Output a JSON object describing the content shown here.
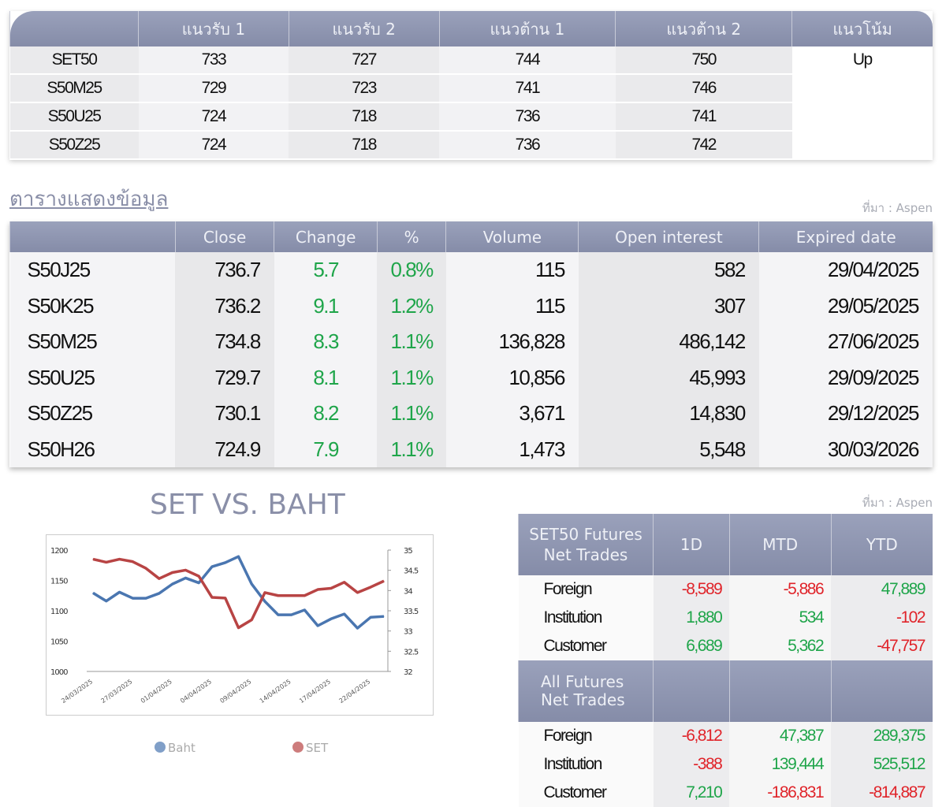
{
  "levels_table": {
    "headers": [
      "",
      "แนวรับ 1",
      "แนวรับ 2",
      "แนวต้าน 1",
      "แนวต้าน 2",
      "แนวโน้ม"
    ],
    "rows": [
      [
        "SET50",
        "733",
        "727",
        "744",
        "750"
      ],
      [
        "S50M25",
        "729",
        "723",
        "741",
        "746"
      ],
      [
        "S50U25",
        "724",
        "718",
        "736",
        "741"
      ],
      [
        "S50Z25",
        "724",
        "718",
        "736",
        "742"
      ]
    ],
    "trend": "Up"
  },
  "data_table": {
    "title": "ตารางแสดงข้อมูล",
    "source": "ที่มา : Aspen",
    "headers": [
      "",
      "Close",
      "Change",
      "%",
      "Volume",
      "Open interest",
      "Expired date"
    ],
    "rows": [
      [
        "S50J25",
        "736.7",
        "5.7",
        "0.8%",
        "115",
        "582",
        "29/04/2025"
      ],
      [
        "S50K25",
        "736.2",
        "9.1",
        "1.2%",
        "115",
        "307",
        "29/05/2025"
      ],
      [
        "S50M25",
        "734.8",
        "8.3",
        "1.1%",
        "136,828",
        "486,142",
        "27/06/2025"
      ],
      [
        "S50U25",
        "729.7",
        "8.1",
        "1.1%",
        "10,856",
        "45,993",
        "29/09/2025"
      ],
      [
        "S50Z25",
        "730.1",
        "8.2",
        "1.1%",
        "3,671",
        "14,830",
        "29/12/2025"
      ],
      [
        "S50H26",
        "724.9",
        "7.9",
        "1.1%",
        "1,473",
        "5,548",
        "30/03/2026"
      ]
    ]
  },
  "chart_data": {
    "type": "line",
    "title": "SET VS. BAHT",
    "x_tick_labels": [
      "24/03/2025",
      "27/03/2025",
      "01/04/2025",
      "04/04/2025",
      "09/04/2025",
      "14/04/2025",
      "17/04/2025",
      "22/04/2025"
    ],
    "y_left": {
      "ylim": [
        1000,
        1200
      ],
      "ticks": [
        "1200",
        "1150",
        "1100",
        "1050",
        "1000"
      ]
    },
    "y_right": {
      "ylim": [
        32,
        35
      ],
      "ticks": [
        "35",
        "34.5",
        "34",
        "33.5",
        "33",
        "32.5",
        "32"
      ]
    },
    "series": [
      {
        "name": "Baht",
        "axis": "right",
        "color": "#4a76b0",
        "values": [
          33.94,
          33.74,
          33.96,
          33.81,
          33.81,
          33.93,
          34.16,
          34.31,
          34.19,
          34.59,
          34.69,
          34.84,
          34.16,
          33.73,
          33.4,
          33.4,
          33.52,
          33.13,
          33.3,
          33.42,
          33.07,
          33.34,
          33.36
        ]
      },
      {
        "name": "SET",
        "axis": "left",
        "color": "#b84444",
        "values": [
          1185,
          1180,
          1185,
          1181,
          1170,
          1153,
          1163,
          1167,
          1157,
          1122,
          1121,
          1072,
          1085,
          1130,
          1125,
          1125,
          1125,
          1135,
          1137,
          1147,
          1130,
          1139,
          1149
        ]
      }
    ],
    "legend": "bottom"
  },
  "net_trades": {
    "source": "ที่มา : Aspen",
    "headers": [
      "SET50 Futures Net Trades",
      "1D",
      "MTD",
      "YTD"
    ],
    "rows": [
      [
        "Foreign",
        "-8,589",
        "-5,886",
        "47,889"
      ],
      [
        "Institution",
        "1,880",
        "534",
        "-102"
      ],
      [
        "Customer",
        "6,689",
        "5,362",
        "-47,757"
      ]
    ],
    "sub_header": "All Futures Net Trades",
    "rows2": [
      [
        "Foreign",
        "-6,812",
        "47,387",
        "289,375"
      ],
      [
        "Institution",
        "-388",
        "139,444",
        "525,512"
      ],
      [
        "Customer",
        "7,210",
        "-186,831",
        "-814,887"
      ]
    ],
    "colors": {
      "positive": "#1fa54a",
      "negative": "#e0242a"
    }
  }
}
